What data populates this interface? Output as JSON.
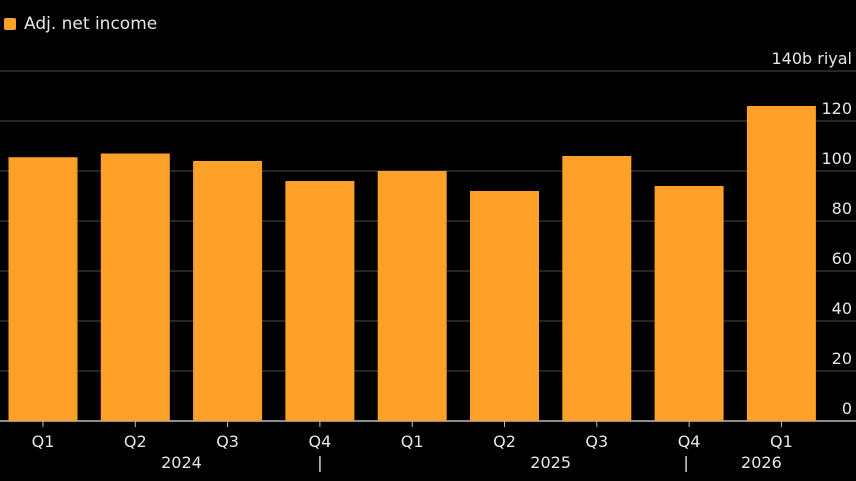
{
  "chart_data": {
    "type": "bar",
    "categories": [
      "Q1",
      "Q2",
      "Q3",
      "Q4",
      "Q1",
      "Q2",
      "Q3",
      "Q4",
      "Q1"
    ],
    "period_groups": [
      {
        "label": "2024",
        "quarters": [
          "Q1",
          "Q2",
          "Q3",
          "Q4"
        ]
      },
      {
        "label": "2025",
        "quarters": [
          "Q1",
          "Q2",
          "Q3",
          "Q4"
        ]
      },
      {
        "label": "2026",
        "quarters": [
          "Q1"
        ]
      }
    ],
    "group_separator": "|",
    "series": [
      {
        "name": "Adj. net income",
        "values": [
          105.5,
          107,
          104,
          96,
          100,
          92,
          106,
          94,
          126
        ]
      }
    ],
    "ylim": [
      0,
      140
    ],
    "yticks": [
      "0",
      "20",
      "40",
      "60",
      "80",
      "100",
      "120",
      "140b riyal"
    ],
    "grid": true,
    "legend": "top-left",
    "colors": {
      "bar": "#FFA028",
      "background": "#000000",
      "grid": "#4a4a4a",
      "text": "#e6e6e6"
    }
  }
}
